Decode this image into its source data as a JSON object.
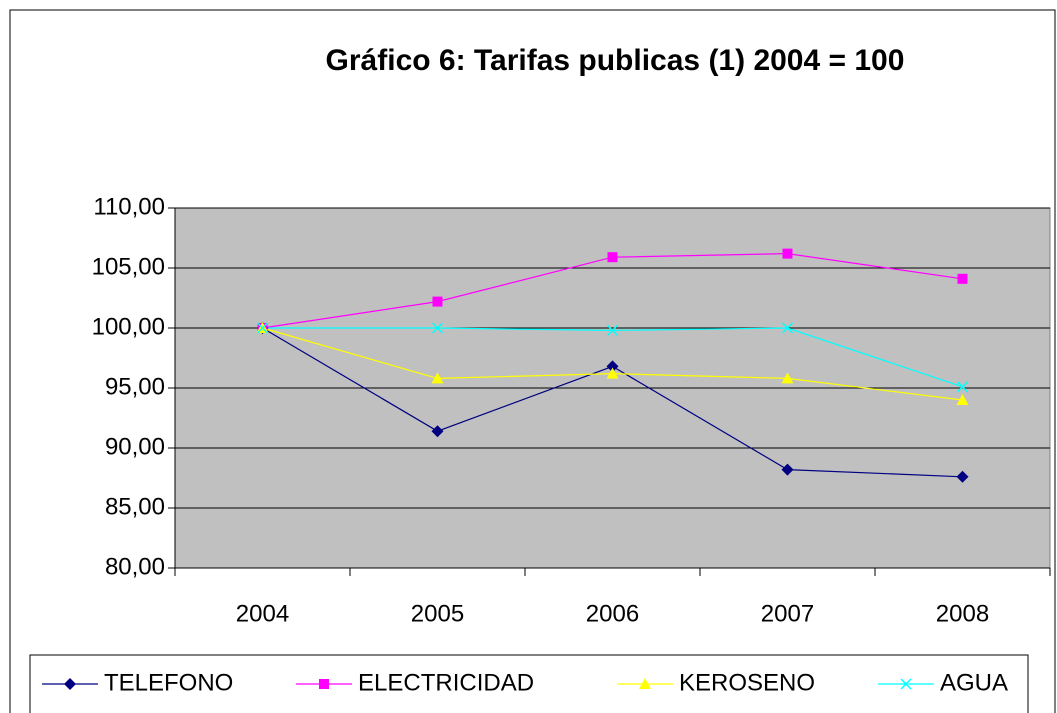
{
  "chart_data": {
    "type": "line",
    "title": "Gráfico 6: Tarifas publicas (1) 2004 = 100",
    "categories": [
      "2004",
      "2005",
      "2006",
      "2007",
      "2008"
    ],
    "series": [
      {
        "name": "TELEFONO",
        "color": "#000080",
        "marker": "diamond",
        "values": [
          100,
          91.4,
          96.8,
          88.2,
          87.6
        ]
      },
      {
        "name": "ELECTRICIDAD",
        "color": "#ff00ff",
        "marker": "square",
        "values": [
          100,
          102.2,
          105.9,
          106.2,
          104.1
        ]
      },
      {
        "name": "KEROSENO",
        "color": "#ffff00",
        "marker": "triangle",
        "values": [
          100,
          95.8,
          96.2,
          95.8,
          94.0
        ]
      },
      {
        "name": "AGUA",
        "color": "#00ffff",
        "marker": "x",
        "values": [
          100,
          100,
          99.8,
          100,
          95.1
        ]
      }
    ],
    "ylim": [
      80,
      110
    ],
    "yticks": [
      {
        "value": 80,
        "label": "80,00"
      },
      {
        "value": 85,
        "label": "85,00"
      },
      {
        "value": 90,
        "label": "90,00"
      },
      {
        "value": 95,
        "label": "95,00"
      },
      {
        "value": 100,
        "label": "100,00"
      },
      {
        "value": 105,
        "label": "105,00"
      },
      {
        "value": 110,
        "label": "110,00"
      }
    ],
    "grid": true,
    "legend": "bottom"
  }
}
